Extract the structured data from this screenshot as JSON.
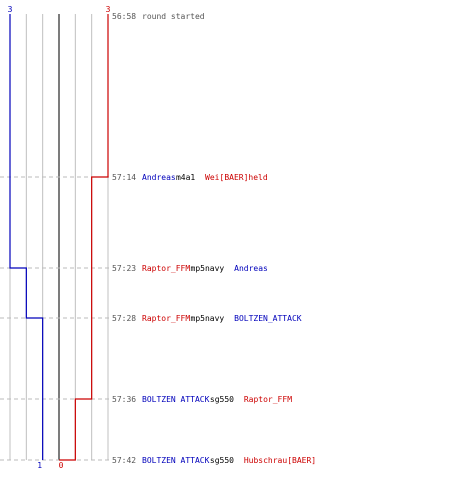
{
  "colors": {
    "team_a": "#0000bb",
    "team_b": "#cc0000",
    "time": "#555555",
    "neutral": "#000000",
    "grid": "#c0c0c0",
    "center": "#444444",
    "guide": "#bbbbbb"
  },
  "chart_data": {
    "type": "line",
    "xlim": [
      -3,
      3
    ],
    "start_counts": {
      "team_a": "3",
      "team_b": "3"
    },
    "end_counts": {
      "team_a": "1",
      "team_b": "0"
    },
    "events": [
      {
        "time": "56:58",
        "a": 3,
        "b": 3,
        "text": [
          {
            "t": "round started",
            "c": "time"
          }
        ]
      },
      {
        "time": "57:14",
        "a": 3,
        "b": 2,
        "text": [
          {
            "t": "Andreas",
            "c": "team_a"
          },
          {
            "t": " m4a1 ",
            "c": "neutral"
          },
          {
            "t": "Wei[BAER]held",
            "c": "team_b"
          }
        ]
      },
      {
        "time": "57:23",
        "a": 2,
        "b": 2,
        "text": [
          {
            "t": "Raptor_FFM",
            "c": "team_b"
          },
          {
            "t": " mp5navy ",
            "c": "neutral"
          },
          {
            "t": "Andreas",
            "c": "team_a"
          }
        ]
      },
      {
        "time": "57:28",
        "a": 1,
        "b": 2,
        "text": [
          {
            "t": "Raptor_FFM",
            "c": "team_b"
          },
          {
            "t": " mp5navy ",
            "c": "neutral"
          },
          {
            "t": "BOLTZEN_ATTACK",
            "c": "team_a"
          }
        ]
      },
      {
        "time": "57:36",
        "a": 1,
        "b": 1,
        "text": [
          {
            "t": "BOLTZEN ATTACK",
            "c": "team_a"
          },
          {
            "t": " sg550 ",
            "c": "neutral"
          },
          {
            "t": "Raptor_FFM",
            "c": "team_b"
          }
        ]
      },
      {
        "time": "57:42",
        "a": 1,
        "b": 0,
        "text": [
          {
            "t": "BOLTZEN ATTACK",
            "c": "team_a"
          },
          {
            "t": " sg550 ",
            "c": "neutral"
          },
          {
            "t": "Hubschrau[BAER]",
            "c": "team_b"
          }
        ]
      }
    ]
  }
}
